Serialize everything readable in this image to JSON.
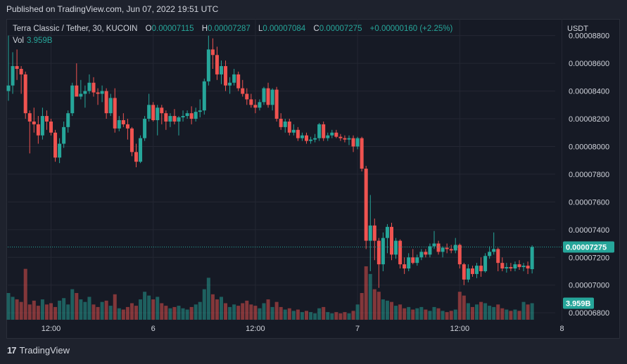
{
  "header": {
    "published": "Published on TradingView.com, Jun 07, 2022 19:51 UTC"
  },
  "legend": {
    "symbol": "Terra Classic / Tether, 30, KUCOIN",
    "open_label": "O",
    "open": "0.00007115",
    "high_label": "H",
    "high": "0.00007287",
    "low_label": "L",
    "low": "0.00007084",
    "close_label": "C",
    "close": "0.00007275",
    "change": "+0.00000160 (+2.25%)",
    "vol_label": "Vol",
    "vol": "3.959B"
  },
  "footer": {
    "logo_text": "TradingView",
    "logo_mark": "17"
  },
  "colors": {
    "up": "#26a69a",
    "down": "#ef5350",
    "grid": "#242733",
    "background": "#161a25"
  },
  "chart_data": {
    "type": "candlestick",
    "currency": "USDT",
    "y_ticks": [
      "0.00008800",
      "0.00008600",
      "0.00008400",
      "0.00008200",
      "0.00008000",
      "0.00007800",
      "0.00007600",
      "0.00007400",
      "0.00007200",
      "0.00007000",
      "0.00006800"
    ],
    "y_tick_values": [
      8.8e-05,
      8.6e-05,
      8.4e-05,
      8.2e-05,
      8e-05,
      7.8e-05,
      7.6e-05,
      7.4e-05,
      7.2e-05,
      7e-05,
      6.8e-05
    ],
    "x_ticks": [
      "12:00",
      "6",
      "12:00",
      "7",
      "12:00",
      "8"
    ],
    "x_tick_bars": [
      10,
      34,
      58,
      82,
      106,
      130
    ],
    "ylim": [
      6.74e-05,
      8.92e-05
    ],
    "last_price": "0.00007275",
    "last_price_value": 7.275e-05,
    "last_volume": "3.959B",
    "ohlcv": [
      [
        8.4e-05,
        8.8e-05,
        8.33e-05,
        8.44e-05,
        2.1
      ],
      [
        8.44e-05,
        8.68e-05,
        8.38e-05,
        8.58e-05,
        1.8
      ],
      [
        8.58e-05,
        8.7e-05,
        8.48e-05,
        8.56e-05,
        1.6
      ],
      [
        8.56e-05,
        8.58e-05,
        8.38e-05,
        8.52e-05,
        1.4
      ],
      [
        8.52e-05,
        8.54e-05,
        8.2e-05,
        8.24e-05,
        4.0
      ],
      [
        8.24e-05,
        8.26e-05,
        7.95e-05,
        8.18e-05,
        1.2
      ],
      [
        8.18e-05,
        8.28e-05,
        8.1e-05,
        8.16e-05,
        1.5
      ],
      [
        8.16e-05,
        8.22e-05,
        8.02e-05,
        8.08e-05,
        1.1
      ],
      [
        8.08e-05,
        8.28e-05,
        8.05e-05,
        8.22e-05,
        1.6
      ],
      [
        8.22e-05,
        8.26e-05,
        8.12e-05,
        8.18e-05,
        1.2
      ],
      [
        8.18e-05,
        8.2e-05,
        8.08e-05,
        8.1e-05,
        1.3
      ],
      [
        8.1e-05,
        8.12e-05,
        7.89e-05,
        7.92e-05,
        1.0
      ],
      [
        7.92e-05,
        8.06e-05,
        7.88e-05,
        8.02e-05,
        1.5
      ],
      [
        8.02e-05,
        8.18e-05,
        7.99e-05,
        8.14e-05,
        1.7
      ],
      [
        8.14e-05,
        8.26e-05,
        8.1e-05,
        8.24e-05,
        1.2
      ],
      [
        8.24e-05,
        8.46e-05,
        8.22e-05,
        8.44e-05,
        2.4
      ],
      [
        8.44e-05,
        8.6e-05,
        8.38e-05,
        8.36e-05,
        2.1
      ],
      [
        8.36e-05,
        8.48e-05,
        8.34e-05,
        8.38e-05,
        1.6
      ],
      [
        8.38e-05,
        8.44e-05,
        8.28e-05,
        8.4e-05,
        1.4
      ],
      [
        8.4e-05,
        8.52e-05,
        8.38e-05,
        8.46e-05,
        1.8
      ],
      [
        8.46e-05,
        8.5e-05,
        8.36e-05,
        8.39e-05,
        1.2
      ],
      [
        8.39e-05,
        8.42e-05,
        8.3e-05,
        8.38e-05,
        1.0
      ],
      [
        8.38e-05,
        8.44e-05,
        8.32e-05,
        8.4e-05,
        1.4
      ],
      [
        8.4e-05,
        8.42e-05,
        8.2e-05,
        8.24e-05,
        1.5
      ],
      [
        8.24e-05,
        8.38e-05,
        8.22e-05,
        8.35e-05,
        1.1
      ],
      [
        8.35e-05,
        8.42e-05,
        8.1e-05,
        8.13e-05,
        2.0
      ],
      [
        8.13e-05,
        8.22e-05,
        8.11e-05,
        8.19e-05,
        0.9
      ],
      [
        8.19e-05,
        8.24e-05,
        8.14e-05,
        8.16e-05,
        0.8
      ],
      [
        8.16e-05,
        8.2e-05,
        8.05e-05,
        8.13e-05,
        1.0
      ],
      [
        8.13e-05,
        8.14e-05,
        7.93e-05,
        7.96e-05,
        1.3
      ],
      [
        7.96e-05,
        8.02e-05,
        7.85e-05,
        7.89e-05,
        1.1
      ],
      [
        7.89e-05,
        8.08e-05,
        7.88e-05,
        8.06e-05,
        1.6
      ],
      [
        8.06e-05,
        8.22e-05,
        8.04e-05,
        8.2e-05,
        2.2
      ],
      [
        8.2e-05,
        8.38e-05,
        8.18e-05,
        8.3e-05,
        1.9
      ],
      [
        8.3e-05,
        8.32e-05,
        8.18e-05,
        8.19e-05,
        1.6
      ],
      [
        8.19e-05,
        8.3e-05,
        8.08e-05,
        8.28e-05,
        1.8
      ],
      [
        8.28e-05,
        8.3e-05,
        8.16e-05,
        8.24e-05,
        1.3
      ],
      [
        8.24e-05,
        8.26e-05,
        8.12e-05,
        8.18e-05,
        1.1
      ],
      [
        8.18e-05,
        8.24e-05,
        8.14e-05,
        8.22e-05,
        0.9
      ],
      [
        8.22e-05,
        8.27e-05,
        8.16e-05,
        8.18e-05,
        1.0
      ],
      [
        8.18e-05,
        8.22e-05,
        8.08e-05,
        8.21e-05,
        1.1
      ],
      [
        8.21e-05,
        8.26e-05,
        8.18e-05,
        8.22e-05,
        0.9
      ],
      [
        8.22e-05,
        8.26e-05,
        8.2e-05,
        8.24e-05,
        0.8
      ],
      [
        8.24e-05,
        8.29e-05,
        8.16e-05,
        8.2e-05,
        1.0
      ],
      [
        8.2e-05,
        8.28e-05,
        8.18e-05,
        8.25e-05,
        1.2
      ],
      [
        8.25e-05,
        8.34e-05,
        8.21e-05,
        8.26e-05,
        1.4
      ],
      [
        8.26e-05,
        8.49e-05,
        8.23e-05,
        8.47e-05,
        2.4
      ],
      [
        8.47e-05,
        8.8e-05,
        8.44e-05,
        8.7e-05,
        3.3
      ],
      [
        8.7e-05,
        8.78e-05,
        8.56e-05,
        8.66e-05,
        2.0
      ],
      [
        8.66e-05,
        8.72e-05,
        8.48e-05,
        8.52e-05,
        1.6
      ],
      [
        8.52e-05,
        8.62e-05,
        8.45e-05,
        8.58e-05,
        1.8
      ],
      [
        8.58e-05,
        8.62e-05,
        8.4e-05,
        8.44e-05,
        1.3
      ],
      [
        8.44e-05,
        8.5e-05,
        8.38e-05,
        8.46e-05,
        1.0
      ],
      [
        8.46e-05,
        8.56e-05,
        8.44e-05,
        8.52e-05,
        1.2
      ],
      [
        8.52e-05,
        8.54e-05,
        8.4e-05,
        8.42e-05,
        1.1
      ],
      [
        8.42e-05,
        8.48e-05,
        8.36e-05,
        8.38e-05,
        1.3
      ],
      [
        8.38e-05,
        8.42e-05,
        8.3e-05,
        8.34e-05,
        1.5
      ],
      [
        8.34e-05,
        8.38e-05,
        8.28e-05,
        8.3e-05,
        1.2
      ],
      [
        8.3e-05,
        8.34e-05,
        8.24e-05,
        8.28e-05,
        1.1
      ],
      [
        8.28e-05,
        8.34e-05,
        8.26e-05,
        8.32e-05,
        0.9
      ],
      [
        8.32e-05,
        8.43e-05,
        8.3e-05,
        8.42e-05,
        1.3
      ],
      [
        8.42e-05,
        8.46e-05,
        8.28e-05,
        8.3e-05,
        1.6
      ],
      [
        8.3e-05,
        8.42e-05,
        8.26e-05,
        8.41e-05,
        1.0
      ],
      [
        8.41e-05,
        8.43e-05,
        8.18e-05,
        8.2e-05,
        1.4
      ],
      [
        8.2e-05,
        8.24e-05,
        8.12e-05,
        8.14e-05,
        1.0
      ],
      [
        8.14e-05,
        8.2e-05,
        8.1e-05,
        8.18e-05,
        0.8
      ],
      [
        8.18e-05,
        8.2e-05,
        8.08e-05,
        8.1e-05,
        0.9
      ],
      [
        8.1e-05,
        8.16e-05,
        8.08e-05,
        8.12e-05,
        0.7
      ],
      [
        8.12e-05,
        8.14e-05,
        8.04e-05,
        8.06e-05,
        0.8
      ],
      [
        8.06e-05,
        8.1e-05,
        8.04e-05,
        8.08e-05,
        0.6
      ],
      [
        8.08e-05,
        8.1e-05,
        8.02e-05,
        8.04e-05,
        0.7
      ],
      [
        8.04e-05,
        8.07e-05,
        8.02e-05,
        8.05e-05,
        0.6
      ],
      [
        8.05e-05,
        8.09e-05,
        8.03e-05,
        8.06e-05,
        0.5
      ],
      [
        8.06e-05,
        8.17e-05,
        8.04e-05,
        8.16e-05,
        0.9
      ],
      [
        8.16e-05,
        8.18e-05,
        8.04e-05,
        8.06e-05,
        1.0
      ],
      [
        8.06e-05,
        8.1e-05,
        8.04e-05,
        8.08e-05,
        0.6
      ],
      [
        8.08e-05,
        8.12e-05,
        8.06e-05,
        8.1e-05,
        0.5
      ],
      [
        8.1e-05,
        8.12e-05,
        8.06e-05,
        8.07e-05,
        0.6
      ],
      [
        8.07e-05,
        8.09e-05,
        8.04e-05,
        8.06e-05,
        0.5
      ],
      [
        8.06e-05,
        8.08e-05,
        8.03e-05,
        8.05e-05,
        0.6
      ],
      [
        8.05e-05,
        8.08e-05,
        8.01e-05,
        8.06e-05,
        0.5
      ],
      [
        8.06e-05,
        8.08e-05,
        7.96e-05,
        8e-05,
        0.7
      ],
      [
        8e-05,
        8.07e-05,
        7.98e-05,
        8.06e-05,
        1.2
      ],
      [
        8.06e-05,
        8.07e-05,
        7.82e-05,
        7.84e-05,
        2.1
      ],
      [
        7.84e-05,
        7.86e-05,
        7.26e-05,
        7.32e-05,
        4.2
      ],
      [
        7.32e-05,
        7.65e-05,
        7.1e-05,
        7.43e-05,
        3.6
      ],
      [
        7.43e-05,
        7.48e-05,
        7.18e-05,
        7.32e-05,
        2.4
      ],
      [
        7.32e-05,
        7.34e-05,
        6.98e-05,
        7.15e-05,
        2.2
      ],
      [
        7.15e-05,
        7.38e-05,
        7.1e-05,
        7.34e-05,
        1.6
      ],
      [
        7.34e-05,
        7.44e-05,
        7.23e-05,
        7.42e-05,
        1.5
      ],
      [
        7.42e-05,
        7.45e-05,
        7.18e-05,
        7.22e-05,
        1.4
      ],
      [
        7.22e-05,
        7.34e-05,
        7.19e-05,
        7.32e-05,
        1.1
      ],
      [
        7.32e-05,
        7.33e-05,
        7.12e-05,
        7.15e-05,
        1.2
      ],
      [
        7.15e-05,
        7.2e-05,
        7.08e-05,
        7.12e-05,
        0.9
      ],
      [
        7.12e-05,
        7.23e-05,
        7.1e-05,
        7.2e-05,
        1.0
      ],
      [
        7.2e-05,
        7.26e-05,
        7.15e-05,
        7.16e-05,
        0.8
      ],
      [
        7.16e-05,
        7.22e-05,
        7.14e-05,
        7.2e-05,
        0.9
      ],
      [
        7.2e-05,
        7.26e-05,
        7.18e-05,
        7.24e-05,
        1.0
      ],
      [
        7.24e-05,
        7.26e-05,
        7.2e-05,
        7.22e-05,
        0.8
      ],
      [
        7.22e-05,
        7.3e-05,
        7.2e-05,
        7.28e-05,
        0.7
      ],
      [
        7.28e-05,
        7.39e-05,
        7.26e-05,
        7.3e-05,
        1.0
      ],
      [
        7.3e-05,
        7.32e-05,
        7.22e-05,
        7.24e-05,
        0.9
      ],
      [
        7.24e-05,
        7.28e-05,
        7.2e-05,
        7.27e-05,
        0.7
      ],
      [
        7.27e-05,
        7.3e-05,
        7.23e-05,
        7.26e-05,
        0.6
      ],
      [
        7.26e-05,
        7.29e-05,
        7.23e-05,
        7.25e-05,
        0.7
      ],
      [
        7.25e-05,
        7.34e-05,
        7.23e-05,
        7.29e-05,
        0.8
      ],
      [
        7.29e-05,
        7.3e-05,
        7.12e-05,
        7.15e-05,
        2.2
      ],
      [
        7.15e-05,
        7.16e-05,
        7e-05,
        7.04e-05,
        1.9
      ],
      [
        7.04e-05,
        7.15e-05,
        7.02e-05,
        7.12e-05,
        1.3
      ],
      [
        7.12e-05,
        7.14e-05,
        7.06e-05,
        7.08e-05,
        1.0
      ],
      [
        7.08e-05,
        7.16e-05,
        7.05e-05,
        7.14e-05,
        1.2
      ],
      [
        7.14e-05,
        7.2e-05,
        7.06e-05,
        7.1e-05,
        1.4
      ],
      [
        7.1e-05,
        7.23e-05,
        7.09e-05,
        7.21e-05,
        1.3
      ],
      [
        7.21e-05,
        7.28e-05,
        7.19e-05,
        7.24e-05,
        1.1
      ],
      [
        7.24e-05,
        7.38e-05,
        7.22e-05,
        7.26e-05,
        1.0
      ],
      [
        7.26e-05,
        7.27e-05,
        7.1e-05,
        7.16e-05,
        1.2
      ],
      [
        7.16e-05,
        7.2e-05,
        7.1e-05,
        7.12e-05,
        0.9
      ],
      [
        7.12e-05,
        7.16e-05,
        7.09e-05,
        7.13e-05,
        0.8
      ],
      [
        7.13e-05,
        7.16e-05,
        7.1e-05,
        7.12e-05,
        0.7
      ],
      [
        7.12e-05,
        7.17e-05,
        7.1e-05,
        7.15e-05,
        0.8
      ],
      [
        7.15e-05,
        7.18e-05,
        7.11e-05,
        7.13e-05,
        0.7
      ],
      [
        7.13e-05,
        7.16e-05,
        7.1e-05,
        7.14e-05,
        1.4
      ],
      [
        7.14e-05,
        7.17e-05,
        7.08e-05,
        7.12e-05,
        1.2
      ],
      [
        7.115e-05,
        7.287e-05,
        7.084e-05,
        7.275e-05,
        1.3
      ]
    ]
  }
}
